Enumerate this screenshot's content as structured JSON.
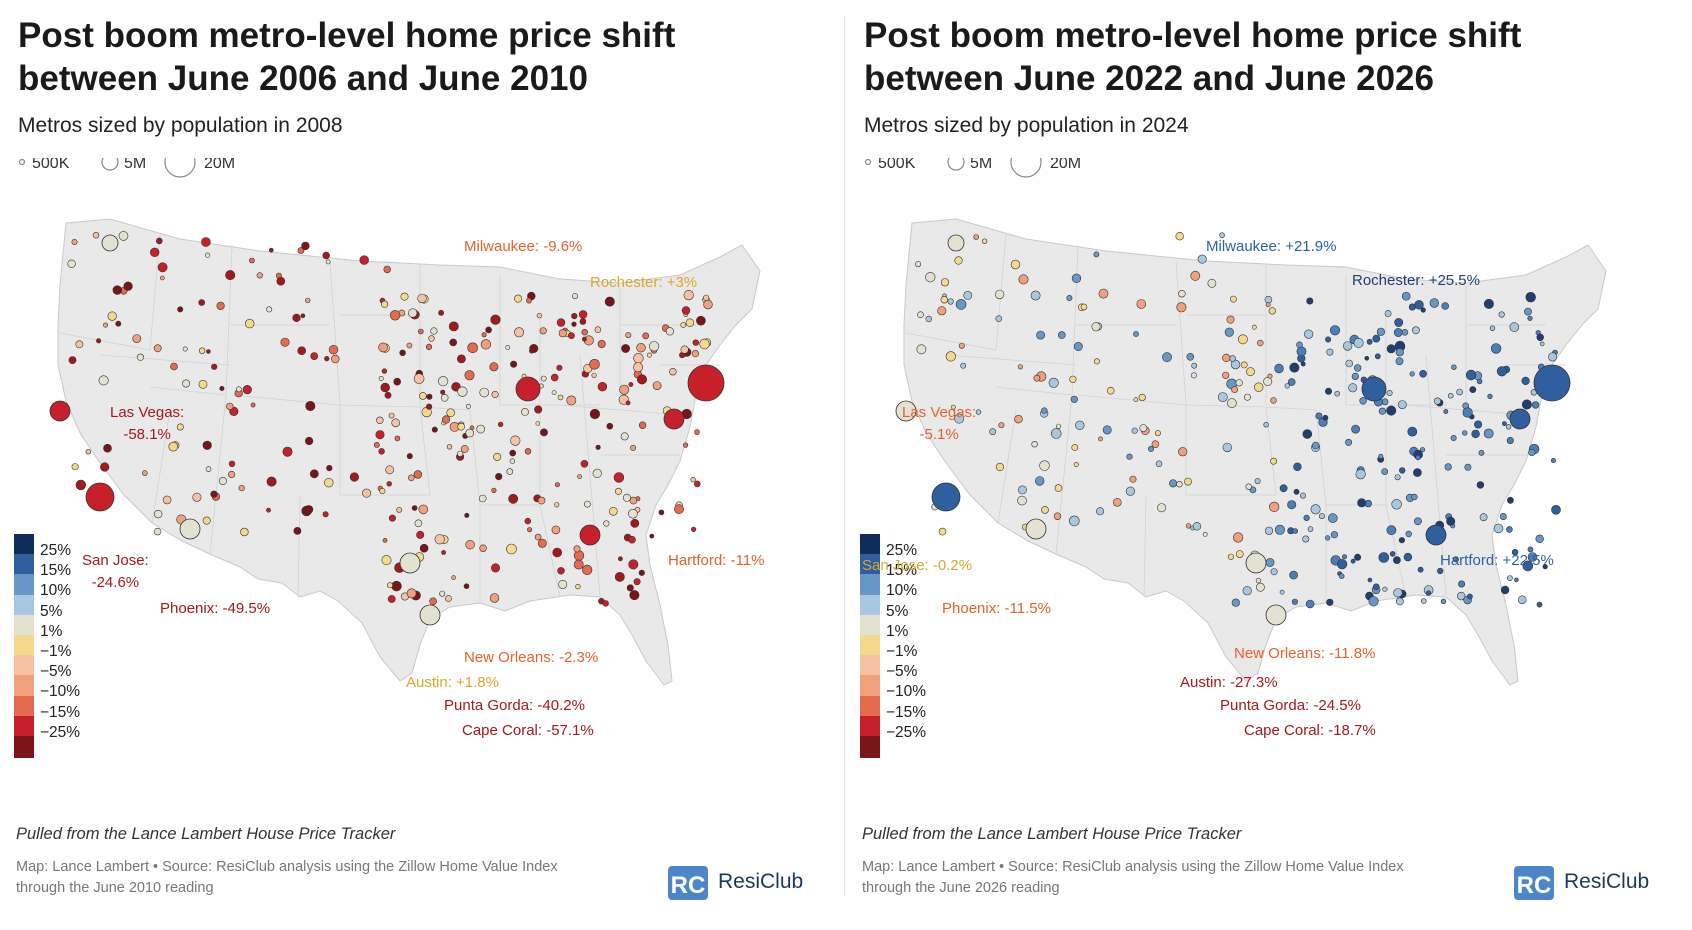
{
  "panels": [
    {
      "title": "Post boom metro-level home price shift between June 2006 and June 2010",
      "subtitle": "Metros sized by population in 2008",
      "size_legend": [
        "500K",
        "5M",
        "20M"
      ],
      "annotations": [
        {
          "text": "Milwaukee: -9.6%",
          "color": "#e3622b"
        },
        {
          "text": "Rochester: +3%",
          "color": "#d9a82a"
        },
        {
          "text": "Las Vegas:\n-58.1%",
          "color": "#a3191c"
        },
        {
          "text": "San Jose:\n-24.6%",
          "color": "#a3191c"
        },
        {
          "text": "Phoenix: -49.5%",
          "color": "#a3191c"
        },
        {
          "text": "Hartford: -11%",
          "color": "#e3622b"
        },
        {
          "text": "New Orleans: -2.3%",
          "color": "#e3622b"
        },
        {
          "text": "Austin: +1.8%",
          "color": "#d9a82a"
        },
        {
          "text": "Punta Gorda: -40.2%",
          "color": "#a3191c"
        },
        {
          "text": "Cape Coral: -57.1%",
          "color": "#a3191c"
        }
      ],
      "footnote": "Pulled from the Lance Lambert House Price Tracker",
      "credit_line1": "Map: Lance Lambert • Source: ResiClub analysis using the Zillow Home Value Index",
      "credit_line2": "through the June 2010 reading"
    },
    {
      "title": "Post boom metro-level home price shift between June 2022 and June 2026",
      "subtitle": "Metros sized by population in 2024",
      "size_legend": [
        "500K",
        "5M",
        "20M"
      ],
      "annotations": [
        {
          "text": "Milwaukee: +21.9%",
          "color": "#2b62a8"
        },
        {
          "text": "Rochester: +25.5%",
          "color": "#1f3f73"
        },
        {
          "text": "Las Vegas:\n-5.1%",
          "color": "#e3622b"
        },
        {
          "text": "San Jose: -0.2%",
          "color": "#d9a82a"
        },
        {
          "text": "Phoenix: -11.5%",
          "color": "#e3622b"
        },
        {
          "text": "Hartford: +22.5%",
          "color": "#2b62a8"
        },
        {
          "text": "New Orleans: -11.8%",
          "color": "#e3622b"
        },
        {
          "text": "Austin: -27.3%",
          "color": "#a3191c"
        },
        {
          "text": "Punta Gorda: -24.5%",
          "color": "#a3191c"
        },
        {
          "text": "Cape Coral: -18.7%",
          "color": "#a3191c"
        }
      ],
      "footnote": "Pulled from the Lance Lambert House Price Tracker",
      "credit_line1": "Map: Lance Lambert • Source: ResiClub analysis using the Zillow Home Value Index",
      "credit_line2": "through the June 2026 reading"
    }
  ],
  "color_legend": [
    {
      "label": "25%",
      "color": "#0f2d5c"
    },
    {
      "label": "15%",
      "color": "#2f5f9e"
    },
    {
      "label": "10%",
      "color": "#6797c7"
    },
    {
      "label": "5%",
      "color": "#a8c8e1"
    },
    {
      "label": "1%",
      "color": "#e3e1cf"
    },
    {
      "label": "−1%",
      "color": "#f6d88a"
    },
    {
      "label": "−5%",
      "color": "#f6c2a2"
    },
    {
      "label": "−10%",
      "color": "#f2a07b"
    },
    {
      "label": "−15%",
      "color": "#e56b4e"
    },
    {
      "label": "−25%",
      "color": "#c8202a"
    },
    {
      "label": "",
      "color": "#7b1419"
    }
  ],
  "brand": {
    "name": "ResiClub",
    "logo_letters": "RC"
  }
}
